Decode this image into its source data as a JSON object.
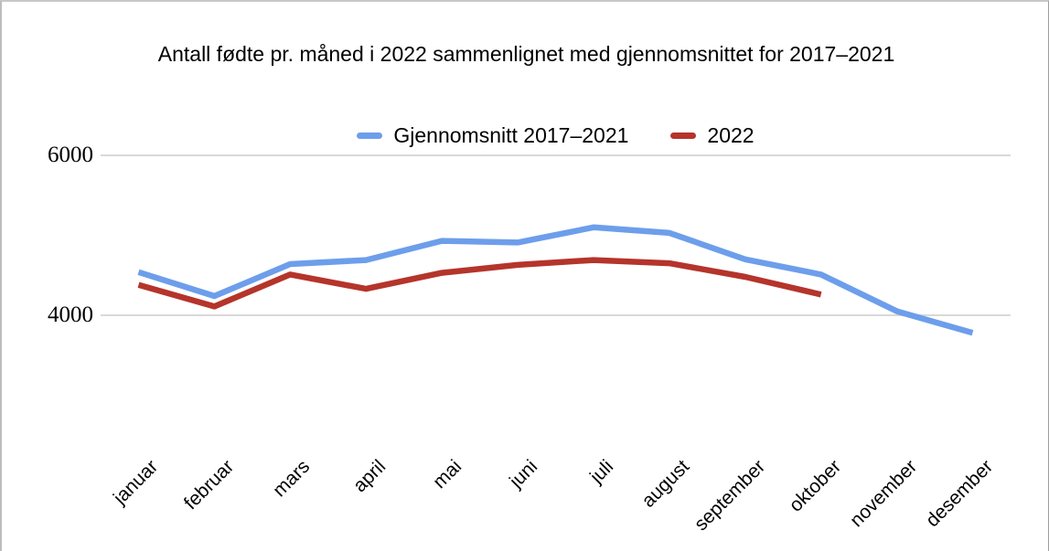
{
  "chart_data": {
    "type": "line",
    "title": "Antall fødte pr. måned i 2022 sammenlignet med gjennomsnittet for 2017–2021",
    "categories": [
      "januar",
      "februar",
      "mars",
      "april",
      "mai",
      "juni",
      "juli",
      "august",
      "september",
      "oktober",
      "november",
      "desember"
    ],
    "series": [
      {
        "name": "Gjennomsnitt 2017–2021",
        "color": "#6D9EEB",
        "values": [
          4540,
          4240,
          4640,
          4690,
          4930,
          4910,
          5100,
          5030,
          4700,
          4510,
          4050,
          3780
        ]
      },
      {
        "name": "2022",
        "color": "#B5342B",
        "values": [
          4380,
          4110,
          4510,
          4330,
          4530,
          4630,
          4690,
          4650,
          4480,
          4260,
          null,
          null
        ]
      }
    ],
    "yticks": [
      4000,
      6000
    ],
    "ylim": [
      3480,
      6280
    ],
    "grid": "horizontal-only",
    "grid_color": "#d9d9d9",
    "legend_position": "top-center",
    "text_color": "#000000",
    "background_color": "#ffffff"
  }
}
